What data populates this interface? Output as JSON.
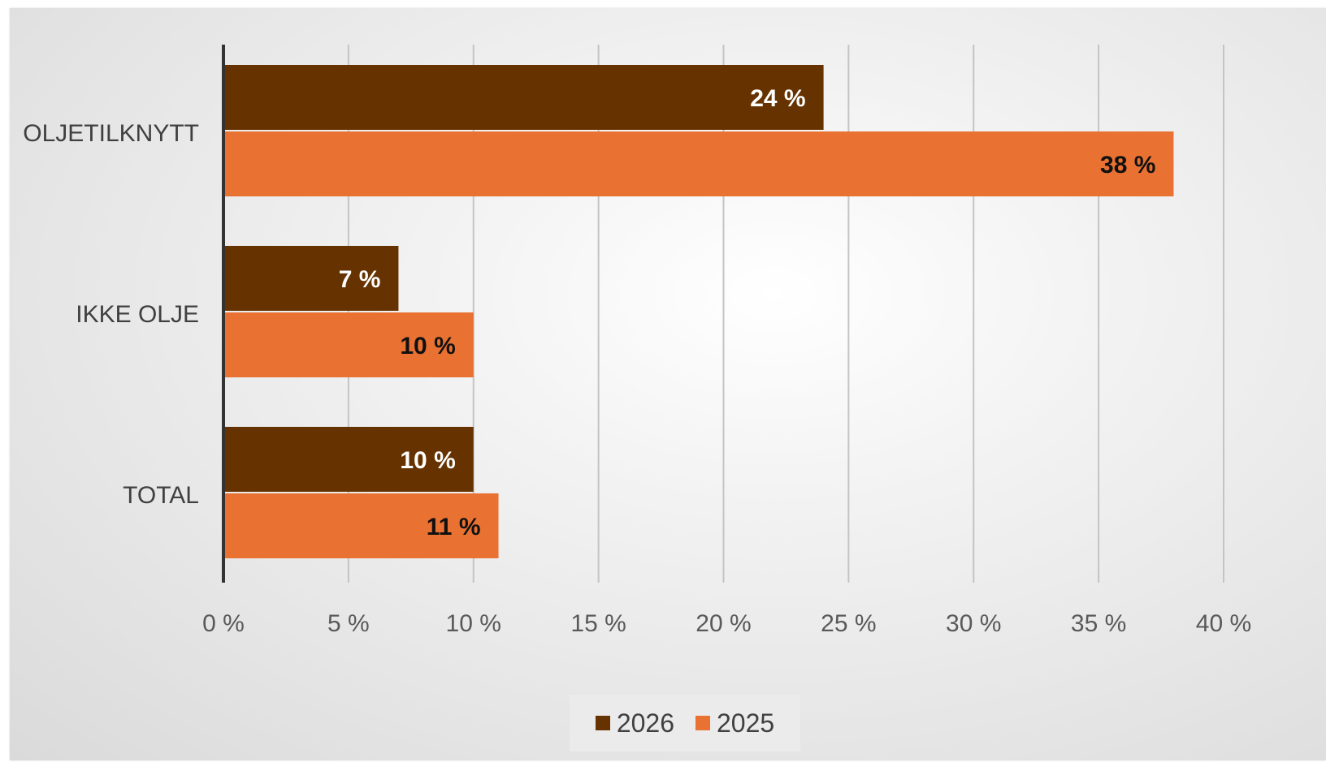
{
  "chart_data": {
    "type": "bar",
    "orientation": "horizontal",
    "categories": [
      "OLJETILKNYTT",
      "IKKE OLJE",
      "TOTAL"
    ],
    "series": [
      {
        "name": "2026",
        "color": "#663300",
        "label_color": "#ffffff",
        "values": [
          24,
          7,
          10
        ],
        "labels": [
          "24 %",
          "7 %",
          "10 %"
        ]
      },
      {
        "name": "2025",
        "color": "#e97132",
        "label_color": "#111111",
        "values": [
          38,
          10,
          11
        ],
        "labels": [
          "38 %",
          "10 %",
          "11 %"
        ]
      }
    ],
    "xlim": [
      0,
      40
    ],
    "x_ticks": [
      0,
      5,
      10,
      15,
      20,
      25,
      30,
      35,
      40
    ],
    "x_tick_labels": [
      "0 %",
      "5 %",
      "10 %",
      "15 %",
      "20 %",
      "25 %",
      "30 %",
      "35 %",
      "40 %"
    ],
    "grid": true,
    "legend_position": "bottom"
  }
}
